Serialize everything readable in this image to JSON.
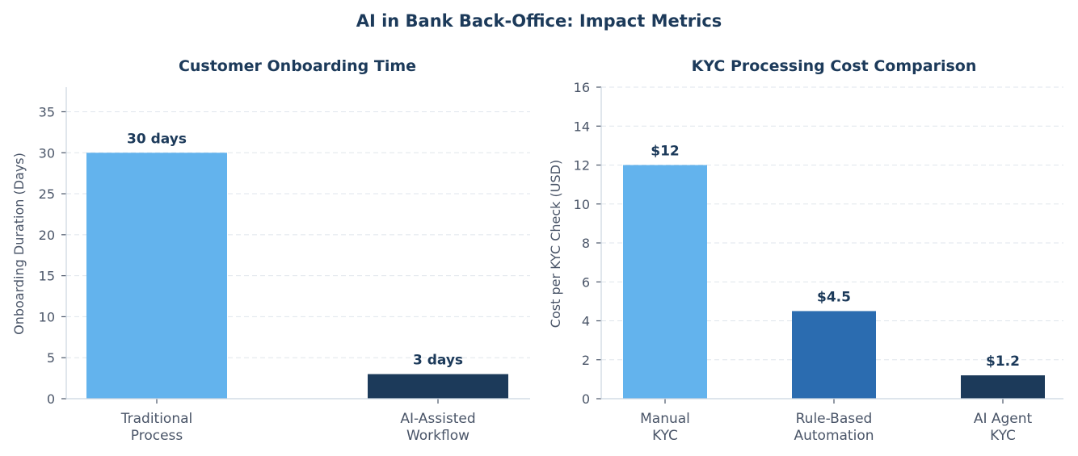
{
  "title": "AI in Bank Back-Office: Impact Metrics",
  "chart_data": [
    {
      "type": "bar",
      "title": "Customer Onboarding Time",
      "xlabel": "",
      "ylabel": "Onboarding Duration (Days)",
      "categories": [
        [
          "Traditional",
          "Process"
        ],
        [
          "AI-Assisted",
          "Workflow"
        ]
      ],
      "values": [
        30,
        3
      ],
      "data_labels": [
        "30 days",
        "3 days"
      ],
      "colors": [
        "#63b3ed",
        "#1c3a5a"
      ],
      "ylim": [
        0,
        38
      ],
      "yticks": [
        0,
        5,
        10,
        15,
        20,
        25,
        30,
        35
      ],
      "grid": true
    },
    {
      "type": "bar",
      "title": "KYC Processing Cost Comparison",
      "xlabel": "",
      "ylabel": "Cost per KYC Check (USD)",
      "categories": [
        [
          "Manual",
          "KYC"
        ],
        [
          "Rule-Based",
          "Automation"
        ],
        [
          "AI Agent",
          "KYC"
        ]
      ],
      "values": [
        12,
        4.5,
        1.2
      ],
      "data_labels": [
        "$12",
        "$4.5",
        "$1.2"
      ],
      "colors": [
        "#63b3ed",
        "#2b6cb0",
        "#1c3a5a"
      ],
      "ylim": [
        0,
        16
      ],
      "yticks": [
        0,
        2,
        4,
        6,
        8,
        10,
        12,
        14,
        16
      ],
      "grid": true
    }
  ]
}
